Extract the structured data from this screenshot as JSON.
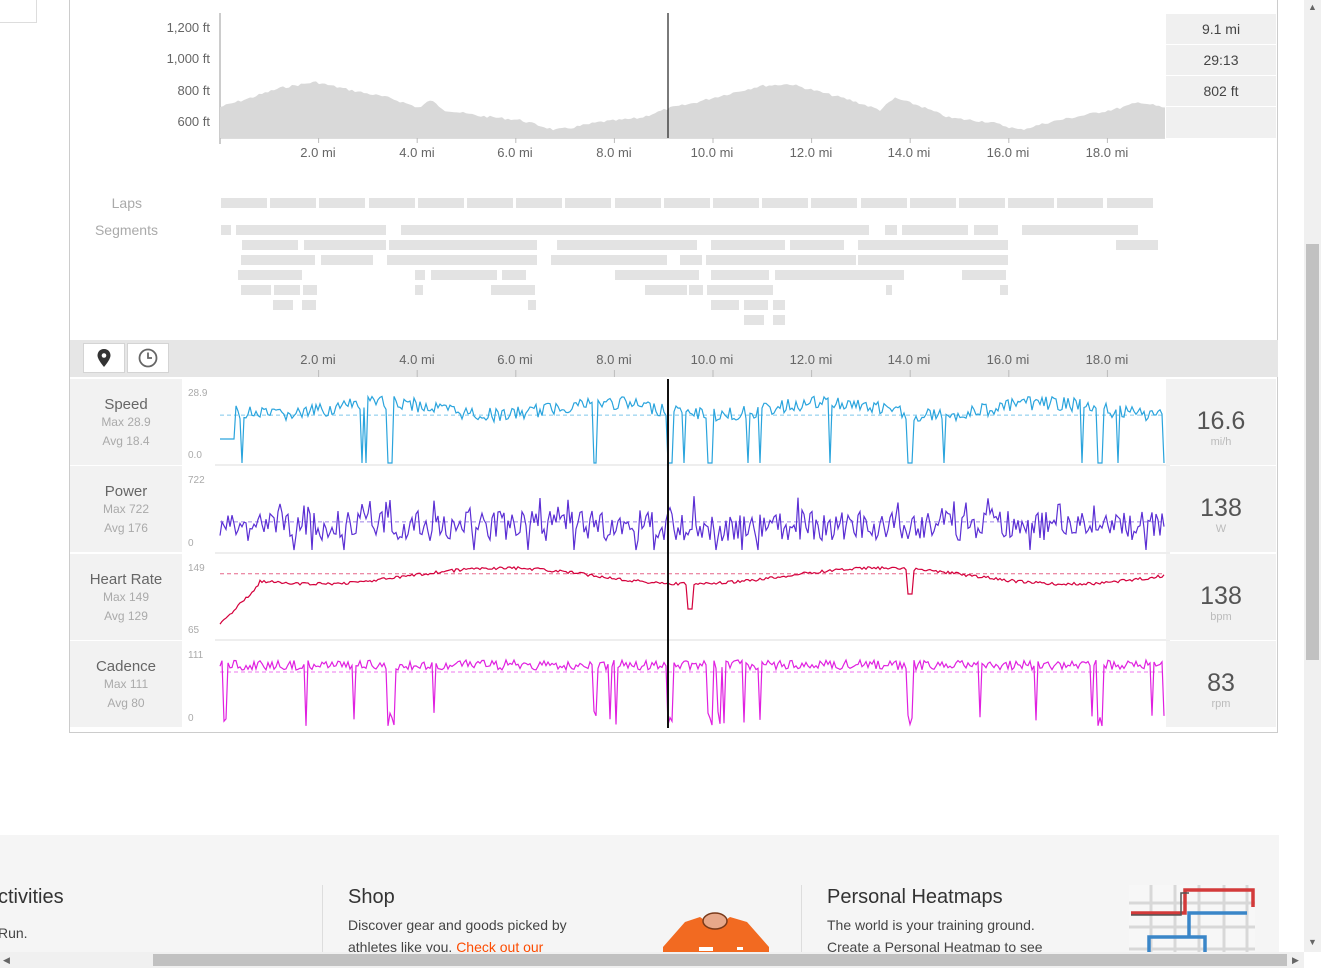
{
  "elevation": {
    "y_labels": [
      "1,200 ft",
      "1,000 ft",
      "800 ft",
      "600 ft"
    ],
    "x_labels": [
      "2.0 mi",
      "4.0 mi",
      "6.0 mi",
      "8.0 mi",
      "10.0 mi",
      "12.0 mi",
      "14.0 mi",
      "16.0 mi",
      "18.0 mi"
    ],
    "stats": [
      "9.1 mi",
      "29:13",
      "802 ft"
    ],
    "color": "#d9d9d9"
  },
  "rows": {
    "laps": "Laps",
    "segments": "Segments"
  },
  "toolbar": {
    "distance_icon": "map-pin-icon",
    "time_icon": "clock-icon"
  },
  "streams": [
    {
      "name": "Speed",
      "max": "Max 28.9",
      "avg": "Avg 18.4",
      "top": "28.9",
      "bottom": "0.0",
      "value": "16.6",
      "unit": "mi/h",
      "color": "#2aa4dd"
    },
    {
      "name": "Power",
      "max": "Max 722",
      "avg": "Avg 176",
      "top": "722",
      "bottom": "0",
      "value": "138",
      "unit": "W",
      "color": "#5b2fd4"
    },
    {
      "name": "Heart Rate",
      "max": "Max 149",
      "avg": "Avg 129",
      "top": "149",
      "bottom": "65",
      "value": "138",
      "unit": "bpm",
      "color": "#d4003c"
    },
    {
      "name": "Cadence",
      "max": "Max 111",
      "avg": "Avg 80",
      "top": "111",
      "bottom": "0",
      "value": "83",
      "unit": "rpm",
      "color": "#e020e0"
    }
  ],
  "footer": {
    "activities_title": "ctivities",
    "activities_text": "Run.",
    "shop_title": "Shop",
    "shop_text": "Discover gear and goods picked by",
    "shop_text2": "athletes like you.",
    "shop_link": "Check out our",
    "heatmap_title": "Personal Heatmaps",
    "heatmap_text": "The world is your training ground.",
    "heatmap_text2": "Create a Personal Heatmap to see",
    "link_color": "#fc4c02"
  }
}
